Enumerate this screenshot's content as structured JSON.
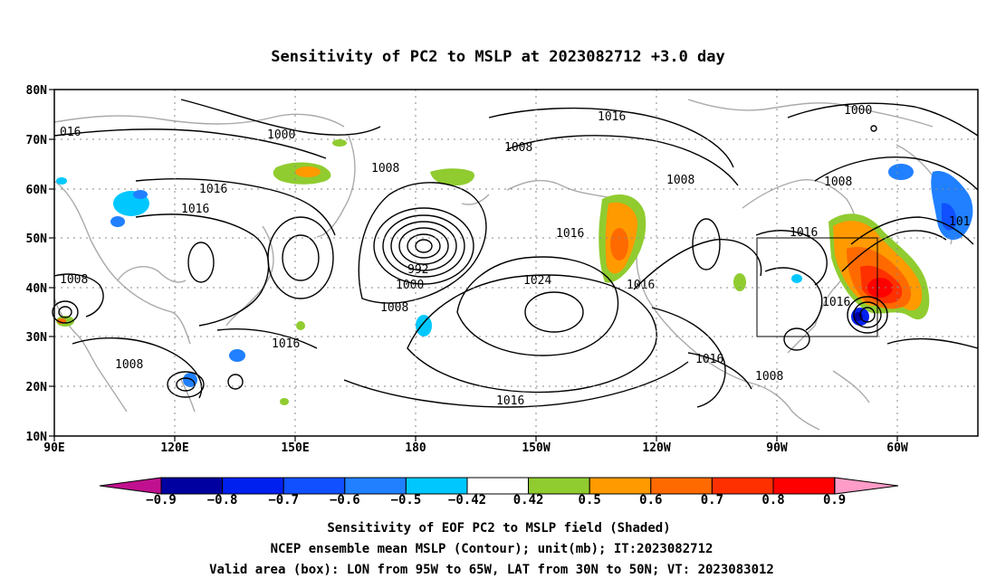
{
  "title": "Sensitivity of PC2 to MSLP at 2023082712 +3.0 day",
  "lat_labels": [
    "80N",
    "70N",
    "60N",
    "50N",
    "40N",
    "30N",
    "20N",
    "10N"
  ],
  "lon_labels": [
    "90E",
    "120E",
    "150E",
    "180",
    "150W",
    "120W",
    "90W",
    "60W"
  ],
  "contour_labels": [
    {
      "text": "016"
    },
    {
      "text": "1000"
    },
    {
      "text": "1008"
    },
    {
      "text": "1016"
    },
    {
      "text": "1016"
    },
    {
      "text": "992"
    },
    {
      "text": "1000"
    },
    {
      "text": "1008"
    },
    {
      "text": "1008"
    },
    {
      "text": "1016"
    },
    {
      "text": "1008"
    },
    {
      "text": "1016"
    },
    {
      "text": "1008"
    },
    {
      "text": "1024"
    },
    {
      "text": "1016"
    },
    {
      "text": "1016"
    },
    {
      "text": "1016"
    },
    {
      "text": "1008"
    },
    {
      "text": "1016"
    },
    {
      "text": "1008"
    },
    {
      "text": "1016"
    },
    {
      "text": "1008"
    },
    {
      "text": "1000"
    },
    {
      "text": "101"
    },
    {
      "text": "1016"
    }
  ],
  "colorbar": {
    "colors": [
      "#0000a0",
      "#0020f0",
      "#1050ff",
      "#2080ff",
      "#00c8ff",
      "#ffffff",
      "#90cc30",
      "#ff9a00",
      "#ff6a00",
      "#ff3000",
      "#ff0000"
    ],
    "low_end_color": "#c0108f",
    "high_end_color": "#ff9cc8",
    "labels": [
      "−0.9",
      "−0.8",
      "−0.7",
      "−0.6",
      "−0.5",
      "−0.42",
      "0.42",
      "0.5",
      "0.6",
      "0.7",
      "0.8",
      "0.9"
    ]
  },
  "caption": {
    "line1": "Sensitivity of EOF PC2 to MSLP field (Shaded)",
    "line2": "NCEP ensemble mean MSLP (Contour); unit(mb); IT:2023082712",
    "line3": "Valid area (box): LON from 95W to 65W, LAT from 30N to 50N; VT: 2023083012"
  }
}
